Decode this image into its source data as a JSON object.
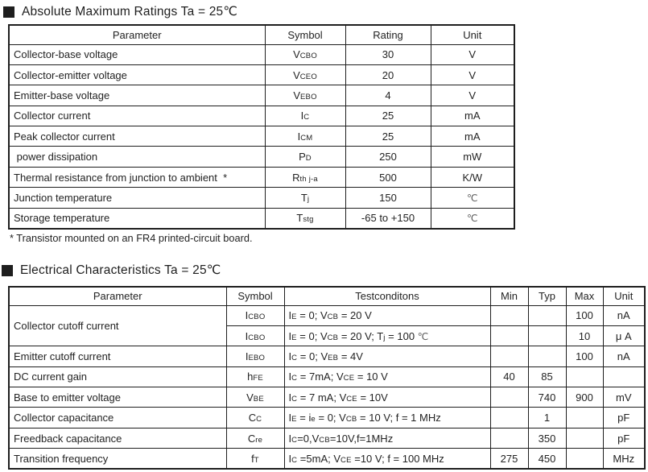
{
  "section1": {
    "title": "Absolute Maximum Ratings Ta = 25℃",
    "footnote": "* Transistor mounted on an FR4 printed-circuit board.",
    "table": {
      "headers": [
        "Parameter",
        "Symbol",
        "Rating",
        "Unit"
      ],
      "rows": [
        {
          "parameter": "Collector-base voltage",
          "symbol": [
            [
              "t",
              "V"
            ],
            [
              "s",
              "CBO"
            ]
          ],
          "rating": "30",
          "unit": "V"
        },
        {
          "parameter": "Collector-emitter voltage",
          "symbol": [
            [
              "t",
              "V"
            ],
            [
              "s",
              "CEO"
            ]
          ],
          "rating": "20",
          "unit": "V"
        },
        {
          "parameter": "Emitter-base voltage",
          "symbol": [
            [
              "t",
              "V"
            ],
            [
              "s",
              "EBO"
            ]
          ],
          "rating": "4",
          "unit": "V"
        },
        {
          "parameter": "Collector current",
          "symbol": [
            [
              "t",
              "I"
            ],
            [
              "s",
              "C"
            ]
          ],
          "rating": "25",
          "unit": "mA"
        },
        {
          "parameter": "Peak collector current",
          "symbol": [
            [
              "t",
              "I"
            ],
            [
              "s",
              "CM"
            ]
          ],
          "rating": "25",
          "unit": "mA"
        },
        {
          "parameter": " power dissipation",
          "symbol": [
            [
              "t",
              "P"
            ],
            [
              "s",
              "D"
            ]
          ],
          "rating": "250",
          "unit": "mW"
        },
        {
          "parameter": "Thermal resistance from junction to ambient  *",
          "symbol": [
            [
              "t",
              "R"
            ],
            [
              "s",
              "th j-a"
            ]
          ],
          "rating": "500",
          "unit": "K/W"
        },
        {
          "parameter": "Junction temperature",
          "symbol": [
            [
              "t",
              "T"
            ],
            [
              "s",
              "j"
            ]
          ],
          "rating": "150",
          "unit": [
            [
              "d",
              "℃"
            ]
          ]
        },
        {
          "parameter": "Storage temperature",
          "symbol": [
            [
              "t",
              "T"
            ],
            [
              "s",
              "stg"
            ]
          ],
          "rating": "-65 to +150",
          "unit": [
            [
              "d",
              "℃"
            ]
          ]
        }
      ]
    }
  },
  "section2": {
    "title": "Electrical Characteristics Ta = 25℃",
    "table": {
      "headers": [
        "Parameter",
        "Symbol",
        "Testconditons",
        "Min",
        "Typ",
        "Max",
        "Unit"
      ],
      "rows": [
        {
          "parameter": "Collector cutoff current",
          "param_rowspan": 2,
          "symbol": [
            [
              "t",
              "I"
            ],
            [
              "s",
              "CBO"
            ]
          ],
          "conditions": [
            [
              "t",
              "I"
            ],
            [
              "s",
              "E"
            ],
            [
              "t",
              " = 0; V"
            ],
            [
              "s",
              "CB"
            ],
            [
              "t",
              " = 20 V"
            ]
          ],
          "min": "",
          "typ": "",
          "max": "100",
          "unit": "nA"
        },
        {
          "parameter": null,
          "symbol": [
            [
              "t",
              "I"
            ],
            [
              "s",
              "CBO"
            ]
          ],
          "conditions": [
            [
              "t",
              "I"
            ],
            [
              "s",
              "E"
            ],
            [
              "t",
              " = 0; V"
            ],
            [
              "s",
              "CB"
            ],
            [
              "t",
              " = 20 V; T"
            ],
            [
              "s",
              "j"
            ],
            [
              "t",
              " = 100 "
            ],
            [
              "d",
              "℃"
            ]
          ],
          "min": "",
          "typ": "",
          "max": "10",
          "unit": "μ A"
        },
        {
          "parameter": "Emitter cutoff current",
          "symbol": [
            [
              "t",
              "I"
            ],
            [
              "s",
              "EBO"
            ]
          ],
          "conditions": [
            [
              "t",
              "I"
            ],
            [
              "s",
              "C"
            ],
            [
              "t",
              " = 0; V"
            ],
            [
              "s",
              "EB"
            ],
            [
              "t",
              " = 4V"
            ]
          ],
          "min": "",
          "typ": "",
          "max": "100",
          "unit": "nA"
        },
        {
          "parameter": "DC current gain",
          "symbol": [
            [
              "t",
              "h"
            ],
            [
              "s",
              "FE"
            ]
          ],
          "conditions": [
            [
              "t",
              "I"
            ],
            [
              "s",
              "C"
            ],
            [
              "t",
              " = 7mA; V"
            ],
            [
              "s",
              "CE"
            ],
            [
              "t",
              " = 10 V"
            ]
          ],
          "min": "40",
          "typ": "85",
          "max": "",
          "unit": ""
        },
        {
          "parameter": "Base to emitter voltage",
          "symbol": [
            [
              "t",
              "V"
            ],
            [
              "s",
              "BE"
            ]
          ],
          "conditions": [
            [
              "t",
              "I"
            ],
            [
              "s",
              "C"
            ],
            [
              "t",
              " = 7 mA; V"
            ],
            [
              "s",
              "CE"
            ],
            [
              "t",
              " = 10V"
            ]
          ],
          "min": "",
          "typ": "740",
          "max": "900",
          "unit": "mV"
        },
        {
          "parameter": "Collector capacitance",
          "symbol": [
            [
              "t",
              "C"
            ],
            [
              "s",
              "C"
            ]
          ],
          "conditions": [
            [
              "t",
              "I"
            ],
            [
              "s",
              "E"
            ],
            [
              "t",
              " = i"
            ],
            [
              "s",
              "e"
            ],
            [
              "t",
              " = 0; V"
            ],
            [
              "s",
              "CB"
            ],
            [
              "t",
              " = 10 V; f = 1 MHz"
            ]
          ],
          "min": "",
          "typ": "1",
          "max": "",
          "unit": "pF"
        },
        {
          "parameter": "Freedback capacitance",
          "symbol": [
            [
              "t",
              "C"
            ],
            [
              "s",
              "re"
            ]
          ],
          "conditions": [
            [
              "t",
              "I"
            ],
            [
              "s",
              "C"
            ],
            [
              "t",
              "=0,V"
            ],
            [
              "s",
              "CB"
            ],
            [
              "t",
              "=10V,f=1MHz"
            ]
          ],
          "min": "",
          "typ": "350",
          "max": "",
          "unit": "pF"
        },
        {
          "parameter": "Transition frequency",
          "symbol": [
            [
              "t",
              "f"
            ],
            [
              "s",
              "T"
            ]
          ],
          "conditions": [
            [
              "t",
              "I"
            ],
            [
              "s",
              "C"
            ],
            [
              "t",
              " =5mA; V"
            ],
            [
              "s",
              "CE"
            ],
            [
              "t",
              " =10 V; f = 100 MHz"
            ]
          ],
          "min": "275",
          "typ": "450",
          "max": "",
          "unit": "MHz"
        }
      ]
    }
  }
}
